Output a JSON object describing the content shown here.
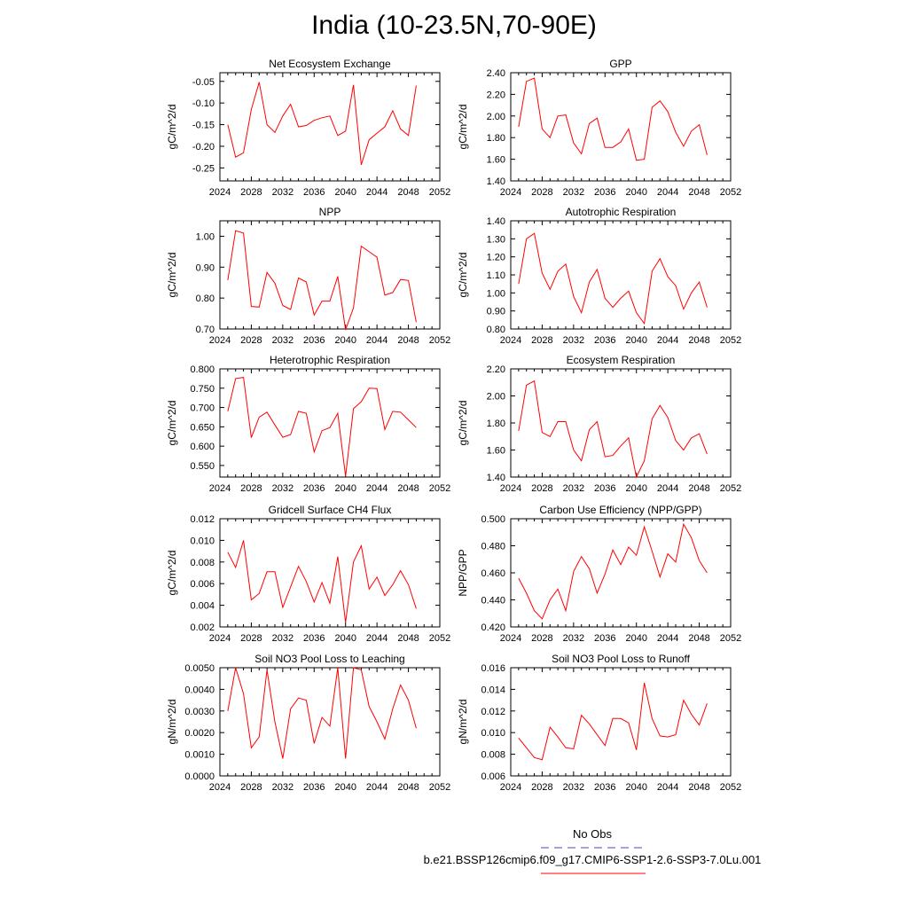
{
  "title": "India (10-23.5N,70-90E)",
  "line_color": "#ff0000",
  "obs_color": "#4444cc",
  "legend": {
    "obs_label": "No Obs",
    "model_label": "b.e21.BSSP126cmip6.f09_g17.CMIP6-SSP1-2.6-SSP3-7.0Lu.001"
  },
  "chart_data": [
    {
      "type": "line",
      "title": "Net Ecosystem Exchange",
      "ylabel": "gC/m^2/d",
      "xlim": [
        2024,
        2052
      ],
      "xticks": [
        "2024",
        "2028",
        "2032",
        "2036",
        "2040",
        "2044",
        "2048",
        "2052"
      ],
      "ylim": [
        -0.28,
        -0.03
      ],
      "yticks": [
        "-0.05",
        "-0.10",
        "-0.15",
        "-0.20",
        "-0.25"
      ],
      "x": [
        2025,
        2026,
        2027,
        2028,
        2029,
        2030,
        2031,
        2032,
        2033,
        2034,
        2035,
        2036,
        2037,
        2038,
        2039,
        2040,
        2041,
        2042,
        2043,
        2044,
        2045,
        2046,
        2047,
        2048,
        2049
      ],
      "values": [
        -0.15,
        -0.225,
        -0.215,
        -0.115,
        -0.052,
        -0.15,
        -0.168,
        -0.13,
        -0.103,
        -0.155,
        -0.152,
        -0.14,
        -0.134,
        -0.13,
        -0.175,
        -0.165,
        -0.058,
        -0.243,
        -0.185,
        -0.17,
        -0.155,
        -0.118,
        -0.16,
        -0.175,
        -0.06
      ]
    },
    {
      "type": "line",
      "title": "GPP",
      "ylabel": "gC/m^2/d",
      "xlim": [
        2024,
        2052
      ],
      "xticks": [
        "2024",
        "2028",
        "2032",
        "2036",
        "2040",
        "2044",
        "2048",
        "2052"
      ],
      "ylim": [
        1.4,
        2.4
      ],
      "yticks": [
        "2.40",
        "2.20",
        "2.00",
        "1.80",
        "1.60",
        "1.40"
      ],
      "x": [
        2025,
        2026,
        2027,
        2028,
        2029,
        2030,
        2031,
        2032,
        2033,
        2034,
        2035,
        2036,
        2037,
        2038,
        2039,
        2040,
        2041,
        2042,
        2043,
        2044,
        2045,
        2046,
        2047,
        2048,
        2049
      ],
      "values": [
        1.9,
        2.32,
        2.35,
        1.88,
        1.8,
        2.0,
        2.01,
        1.75,
        1.65,
        1.93,
        1.98,
        1.71,
        1.71,
        1.76,
        1.88,
        1.59,
        1.6,
        2.08,
        2.14,
        2.04,
        1.85,
        1.72,
        1.86,
        1.92,
        1.64
      ]
    },
    {
      "type": "line",
      "title": "NPP",
      "ylabel": "gC/m^2/d",
      "xlim": [
        2024,
        2052
      ],
      "xticks": [
        "2024",
        "2028",
        "2032",
        "2036",
        "2040",
        "2044",
        "2048",
        "2052"
      ],
      "ylim": [
        0.7,
        1.05
      ],
      "yticks": [
        "1.00",
        "0.90",
        "0.80",
        "0.70"
      ],
      "x": [
        2025,
        2026,
        2027,
        2028,
        2029,
        2030,
        2031,
        2032,
        2033,
        2034,
        2035,
        2036,
        2037,
        2038,
        2039,
        2040,
        2041,
        2042,
        2043,
        2044,
        2045,
        2046,
        2047,
        2048,
        2049
      ],
      "values": [
        0.858,
        1.018,
        1.01,
        0.773,
        0.771,
        0.883,
        0.848,
        0.776,
        0.763,
        0.865,
        0.852,
        0.745,
        0.79,
        0.79,
        0.87,
        0.697,
        0.768,
        0.968,
        0.95,
        0.932,
        0.81,
        0.818,
        0.86,
        0.857,
        0.722
      ]
    },
    {
      "type": "line",
      "title": "Autotrophic Respiration",
      "ylabel": "gC/m^2/d",
      "xlim": [
        2024,
        2052
      ],
      "xticks": [
        "2024",
        "2028",
        "2032",
        "2036",
        "2040",
        "2044",
        "2048",
        "2052"
      ],
      "ylim": [
        0.8,
        1.4
      ],
      "yticks": [
        "1.40",
        "1.30",
        "1.20",
        "1.10",
        "1.00",
        "0.90",
        "0.80"
      ],
      "x": [
        2025,
        2026,
        2027,
        2028,
        2029,
        2030,
        2031,
        2032,
        2033,
        2034,
        2035,
        2036,
        2037,
        2038,
        2039,
        2040,
        2041,
        2042,
        2043,
        2044,
        2045,
        2046,
        2047,
        2048,
        2049
      ],
      "values": [
        1.05,
        1.3,
        1.33,
        1.11,
        1.02,
        1.12,
        1.16,
        0.98,
        0.89,
        1.06,
        1.13,
        0.97,
        0.92,
        0.97,
        1.01,
        0.89,
        0.83,
        1.12,
        1.19,
        1.09,
        1.04,
        0.91,
        1.0,
        1.06,
        0.92
      ]
    },
    {
      "type": "line",
      "title": "Heterotrophic Respiration",
      "ylabel": "gC/m^2/d",
      "xlim": [
        2024,
        2052
      ],
      "xticks": [
        "2024",
        "2028",
        "2032",
        "2036",
        "2040",
        "2044",
        "2048",
        "2052"
      ],
      "ylim": [
        0.52,
        0.8
      ],
      "yticks": [
        "0.800",
        "0.750",
        "0.700",
        "0.650",
        "0.600",
        "0.550"
      ],
      "x": [
        2025,
        2026,
        2027,
        2028,
        2029,
        2030,
        2031,
        2032,
        2033,
        2034,
        2035,
        2036,
        2037,
        2038,
        2039,
        2040,
        2041,
        2042,
        2043,
        2044,
        2045,
        2046,
        2047,
        2048,
        2049
      ],
      "values": [
        0.69,
        0.775,
        0.778,
        0.622,
        0.675,
        0.688,
        0.655,
        0.623,
        0.63,
        0.69,
        0.685,
        0.585,
        0.64,
        0.648,
        0.685,
        0.522,
        0.697,
        0.715,
        0.75,
        0.749,
        0.643,
        0.69,
        0.688,
        0.668,
        0.648
      ]
    },
    {
      "type": "line",
      "title": "Ecosystem Respiration",
      "ylabel": "gC/m^2/d",
      "xlim": [
        2024,
        2052
      ],
      "xticks": [
        "2024",
        "2028",
        "2032",
        "2036",
        "2040",
        "2044",
        "2048",
        "2052"
      ],
      "ylim": [
        1.4,
        2.2
      ],
      "yticks": [
        "2.20",
        "2.00",
        "1.80",
        "1.60",
        "1.40"
      ],
      "x": [
        2025,
        2026,
        2027,
        2028,
        2029,
        2030,
        2031,
        2032,
        2033,
        2034,
        2035,
        2036,
        2037,
        2038,
        2039,
        2040,
        2041,
        2042,
        2043,
        2044,
        2045,
        2046,
        2047,
        2048,
        2049
      ],
      "values": [
        1.74,
        2.08,
        2.11,
        1.73,
        1.7,
        1.81,
        1.81,
        1.6,
        1.52,
        1.75,
        1.81,
        1.55,
        1.56,
        1.63,
        1.69,
        1.4,
        1.52,
        1.83,
        1.93,
        1.84,
        1.67,
        1.6,
        1.69,
        1.72,
        1.57
      ]
    },
    {
      "type": "line",
      "title": "Gridcell Surface CH4 Flux",
      "ylabel": "gC/m^2/d",
      "xlim": [
        2024,
        2052
      ],
      "xticks": [
        "2024",
        "2028",
        "2032",
        "2036",
        "2040",
        "2044",
        "2048",
        "2052"
      ],
      "ylim": [
        0.002,
        0.012
      ],
      "yticks": [
        "0.012",
        "0.010",
        "0.008",
        "0.006",
        "0.004",
        "0.002"
      ],
      "x": [
        2025,
        2026,
        2027,
        2028,
        2029,
        2030,
        2031,
        2032,
        2033,
        2034,
        2035,
        2036,
        2037,
        2038,
        2039,
        2040,
        2041,
        2042,
        2043,
        2044,
        2045,
        2046,
        2047,
        2048,
        2049
      ],
      "values": [
        0.0089,
        0.0075,
        0.01,
        0.0045,
        0.0051,
        0.0071,
        0.0071,
        0.0038,
        0.0057,
        0.0076,
        0.0062,
        0.0043,
        0.0061,
        0.0042,
        0.0085,
        0.0024,
        0.008,
        0.0095,
        0.0055,
        0.0066,
        0.0049,
        0.0059,
        0.0072,
        0.0059,
        0.0037
      ]
    },
    {
      "type": "line",
      "title": "Carbon Use Efficiency (NPP/GPP)",
      "ylabel": "NPP/GPP",
      "xlim": [
        2024,
        2052
      ],
      "xticks": [
        "2024",
        "2028",
        "2032",
        "2036",
        "2040",
        "2044",
        "2048",
        "2052"
      ],
      "ylim": [
        0.42,
        0.5
      ],
      "yticks": [
        "0.500",
        "0.480",
        "0.460",
        "0.440",
        "0.420"
      ],
      "x": [
        2025,
        2026,
        2027,
        2028,
        2029,
        2030,
        2031,
        2032,
        2033,
        2034,
        2035,
        2036,
        2037,
        2038,
        2039,
        2040,
        2041,
        2042,
        2043,
        2044,
        2045,
        2046,
        2047,
        2048,
        2049
      ],
      "values": [
        0.456,
        0.445,
        0.432,
        0.426,
        0.44,
        0.448,
        0.432,
        0.461,
        0.472,
        0.463,
        0.445,
        0.459,
        0.477,
        0.466,
        0.479,
        0.473,
        0.494,
        0.476,
        0.457,
        0.474,
        0.468,
        0.496,
        0.486,
        0.469,
        0.46
      ]
    },
    {
      "type": "line",
      "title": "Soil NO3 Pool Loss to Leaching",
      "ylabel": "gN/m^2/d",
      "xlim": [
        2024,
        2052
      ],
      "xticks": [
        "2024",
        "2028",
        "2032",
        "2036",
        "2040",
        "2044",
        "2048",
        "2052"
      ],
      "ylim": [
        0.0,
        0.005
      ],
      "yticks": [
        "0.0050",
        "0.0040",
        "0.0030",
        "0.0020",
        "0.0010",
        "0.0000"
      ],
      "x": [
        2025,
        2026,
        2027,
        2028,
        2029,
        2030,
        2031,
        2032,
        2033,
        2034,
        2035,
        2036,
        2037,
        2038,
        2039,
        2040,
        2041,
        2042,
        2043,
        2044,
        2045,
        2046,
        2047,
        2048,
        2049
      ],
      "values": [
        0.003,
        0.005,
        0.0038,
        0.0013,
        0.0018,
        0.0049,
        0.0025,
        0.0008,
        0.0031,
        0.0036,
        0.0035,
        0.0015,
        0.0027,
        0.0023,
        0.005,
        0.0008,
        0.005,
        0.0049,
        0.0032,
        0.0025,
        0.0017,
        0.0031,
        0.0042,
        0.0035,
        0.0022
      ]
    },
    {
      "type": "line",
      "title": "Soil NO3 Pool Loss to Runoff",
      "ylabel": "gN/m^2/d",
      "xlim": [
        2024,
        2052
      ],
      "xticks": [
        "2024",
        "2028",
        "2032",
        "2036",
        "2040",
        "2044",
        "2048",
        "2052"
      ],
      "ylim": [
        0.006,
        0.016
      ],
      "yticks": [
        "0.016",
        "0.014",
        "0.012",
        "0.010",
        "0.008",
        "0.006"
      ],
      "x": [
        2025,
        2026,
        2027,
        2028,
        2029,
        2030,
        2031,
        2032,
        2033,
        2034,
        2035,
        2036,
        2037,
        2038,
        2039,
        2040,
        2041,
        2042,
        2043,
        2044,
        2045,
        2046,
        2047,
        2048,
        2049
      ],
      "values": [
        0.0095,
        0.0086,
        0.0077,
        0.0075,
        0.0105,
        0.0096,
        0.0086,
        0.0085,
        0.0116,
        0.0108,
        0.0098,
        0.0088,
        0.0113,
        0.0113,
        0.0109,
        0.0084,
        0.0146,
        0.0113,
        0.0097,
        0.0096,
        0.0098,
        0.013,
        0.0117,
        0.0107,
        0.0127
      ]
    }
  ]
}
